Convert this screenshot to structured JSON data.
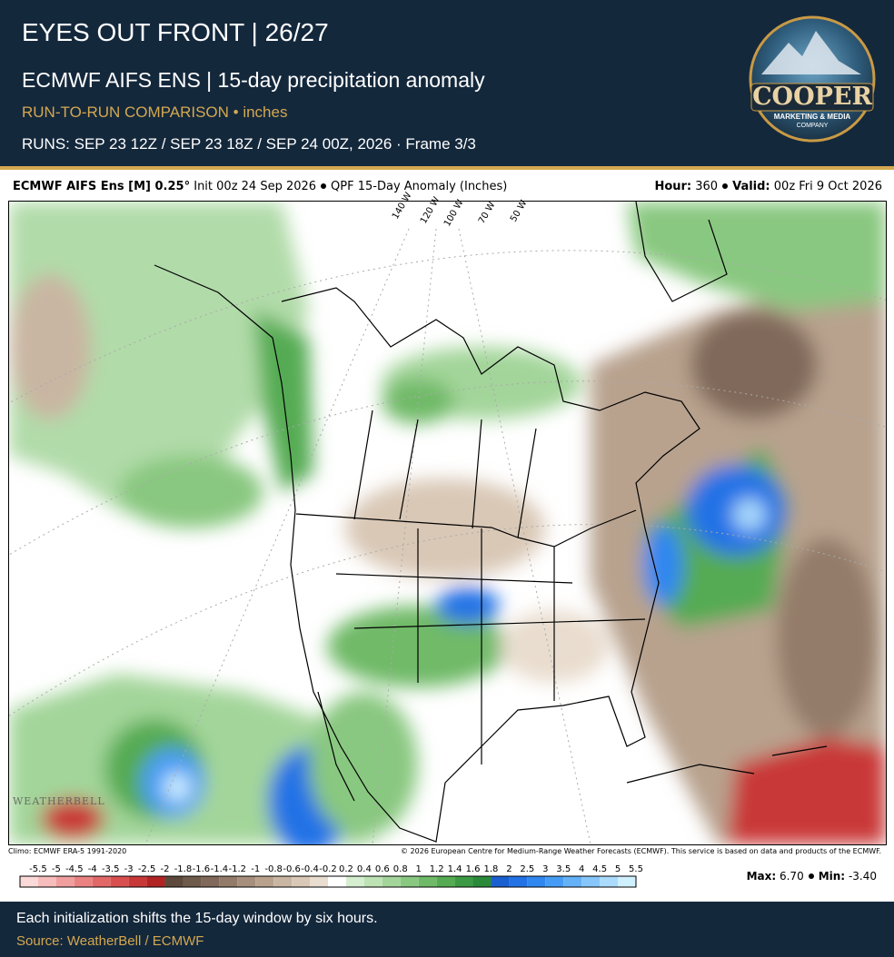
{
  "header": {
    "title": "EYES OUT FRONT | 26/27",
    "subtitle": "ECMWF AIFS ENS | 15-day precipitation anomaly",
    "tag": "RUN-TO-RUN COMPARISON • inches",
    "runs": "RUNS: SEP 23 12Z / SEP 23 18Z / SEP 24 00Z, 2026 · Frame 3/3"
  },
  "logo": {
    "name": "COOPER",
    "line1": "MARKETING & MEDIA",
    "line2": "COMPANY"
  },
  "map": {
    "model": "ECMWF AIFS Ens [M] 0.25°",
    "init": "Init 00z 24 Sep 2026",
    "product": "QPF 15-Day Anomaly (Inches)",
    "hour_label": "Hour:",
    "hour": "360",
    "valid_label": "Valid:",
    "valid": "00z Fri 9 Oct 2026",
    "meridians": [
      "140 W",
      "120 W",
      "100 W",
      "70 W",
      "50 W"
    ],
    "watermark": "WEATHERBELL",
    "climo": "Climo: ECMWF ERA-5 1991-2020",
    "copyright": "© 2026 European Centre for Medium-Range Weather Forecasts (ECMWF). This service is based on data and products of the ECMWF."
  },
  "colorbar": {
    "labels": [
      -5.5,
      -5,
      -4.5,
      -4,
      -3.5,
      -3,
      -2.5,
      -2,
      -1.8,
      -1.6,
      -1.4,
      -1.2,
      -1,
      -0.8,
      -0.6,
      -0.4,
      -0.2,
      0.2,
      0.4,
      0.6,
      0.8,
      1,
      1.2,
      1.4,
      1.6,
      1.8,
      2,
      2.5,
      3,
      3.5,
      4,
      4.5,
      5,
      5.5
    ],
    "colors": [
      "#fcd9d9",
      "#f7bcbc",
      "#f09e9e",
      "#ea8282",
      "#e26868",
      "#d94f4f",
      "#c93838",
      "#b22424",
      "#5d4a3d",
      "#6f5b4c",
      "#80695a",
      "#937b69",
      "#a68f7c",
      "#b8a28e",
      "#c9b6a2",
      "#d9c8b6",
      "#e9ddcf",
      "#ffffff",
      "#d5eecf",
      "#bde2b4",
      "#a3d59a",
      "#89c880",
      "#6fba68",
      "#55ab52",
      "#3c9a44",
      "#2a8a3a",
      "#1a5fd0",
      "#2272e6",
      "#2f87f0",
      "#469cf5",
      "#64b1f8",
      "#86c6fa",
      "#aadbfc",
      "#cff0fe"
    ]
  },
  "stats": {
    "max_label": "Max:",
    "max": "6.70",
    "min_label": "Min:",
    "min": "-3.40"
  },
  "footer": {
    "note": "Each initialization shifts the 15-day window by six hours.",
    "source": "Source: WeatherBell / ECMWF"
  }
}
